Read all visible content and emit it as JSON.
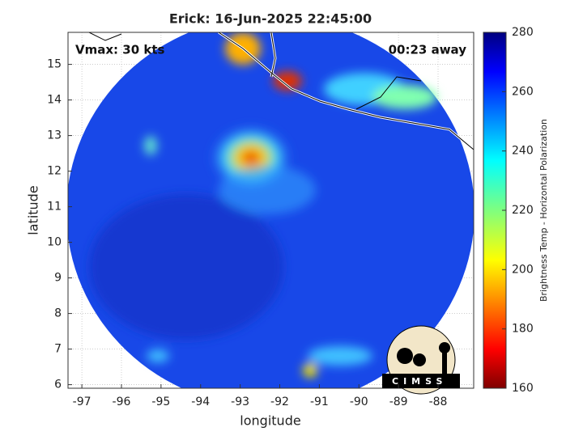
{
  "chart_data": {
    "type": "image",
    "title": "Erick: 16-Jun-2025 22:45:00",
    "annotations": [
      "Vmax: 30 kts",
      "00:23 away"
    ],
    "xlabel": "longitude",
    "ylabel": "latitude",
    "xlim": [
      -97.35,
      -87.1
    ],
    "xticks": [
      -97,
      -96,
      -95,
      -94,
      -93,
      -92,
      -91,
      -90,
      -89,
      -88
    ],
    "ylim": [
      5.9,
      15.9
    ],
    "yticks": [
      6,
      7,
      8,
      9,
      10,
      11,
      12,
      13,
      14,
      15
    ],
    "grid": true,
    "colorbar": {
      "label": "Brightness Temp - Horizontal Polarization",
      "lim": [
        160,
        280
      ],
      "ticks": [
        160,
        180,
        200,
        220,
        240,
        260,
        280
      ]
    }
  },
  "logo": "CIMSS"
}
